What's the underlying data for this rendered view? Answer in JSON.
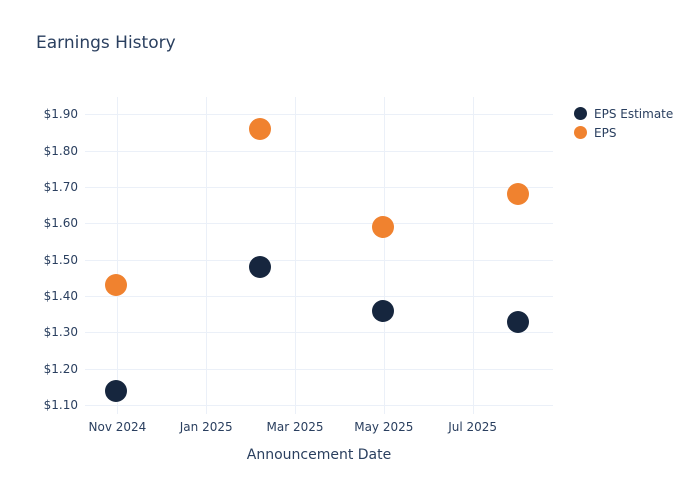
{
  "title": "Earnings History",
  "colors": {
    "background": "#ffffff",
    "text": "#2a3f5f",
    "grid": "#ebf0f8",
    "eps_estimate": "#16263e",
    "eps": "#f0822f"
  },
  "chart_data": {
    "type": "scatter",
    "title": "Earnings History",
    "xlabel": "Announcement Date",
    "ylabel": "",
    "grid": true,
    "legend_position": "right-top",
    "marker_size_px": 22,
    "legend_marker_size_px": 13,
    "x_axis": {
      "tick_labels": [
        "Nov 2024",
        "Jan 2025",
        "Mar 2025",
        "May 2025",
        "Jul 2025"
      ],
      "tick_months": [
        0,
        2,
        4,
        6,
        8
      ],
      "range_months": [
        -0.73,
        9.81
      ]
    },
    "y_axis": {
      "tick_values": [
        1.1,
        1.2,
        1.3,
        1.4,
        1.5,
        1.6,
        1.7,
        1.8,
        1.9
      ],
      "tick_labels": [
        "$1.10",
        "$1.20",
        "$1.30",
        "$1.40",
        "$1.50",
        "$1.60",
        "$1.70",
        "$1.80",
        "$1.90"
      ],
      "range": [
        1.076,
        1.947
      ],
      "tick_prefix": "$"
    },
    "series": [
      {
        "name": "EPS Estimate",
        "color_key": "eps_estimate",
        "points": [
          {
            "date": "Nov 2024",
            "x_month": -0.04,
            "y": 1.14
          },
          {
            "date": "Feb 2025",
            "x_month": 3.21,
            "y": 1.48
          },
          {
            "date": "May 2025",
            "x_month": 5.98,
            "y": 1.36
          },
          {
            "date": "Aug 2025",
            "x_month": 9.02,
            "y": 1.33
          }
        ]
      },
      {
        "name": "EPS",
        "color_key": "eps",
        "points": [
          {
            "date": "Nov 2024",
            "x_month": -0.04,
            "y": 1.43
          },
          {
            "date": "Feb 2025",
            "x_month": 3.21,
            "y": 1.86
          },
          {
            "date": "May 2025",
            "x_month": 5.98,
            "y": 1.59
          },
          {
            "date": "Aug 2025",
            "x_month": 9.02,
            "y": 1.68
          }
        ]
      }
    ],
    "legend": [
      "EPS Estimate",
      "EPS"
    ]
  }
}
